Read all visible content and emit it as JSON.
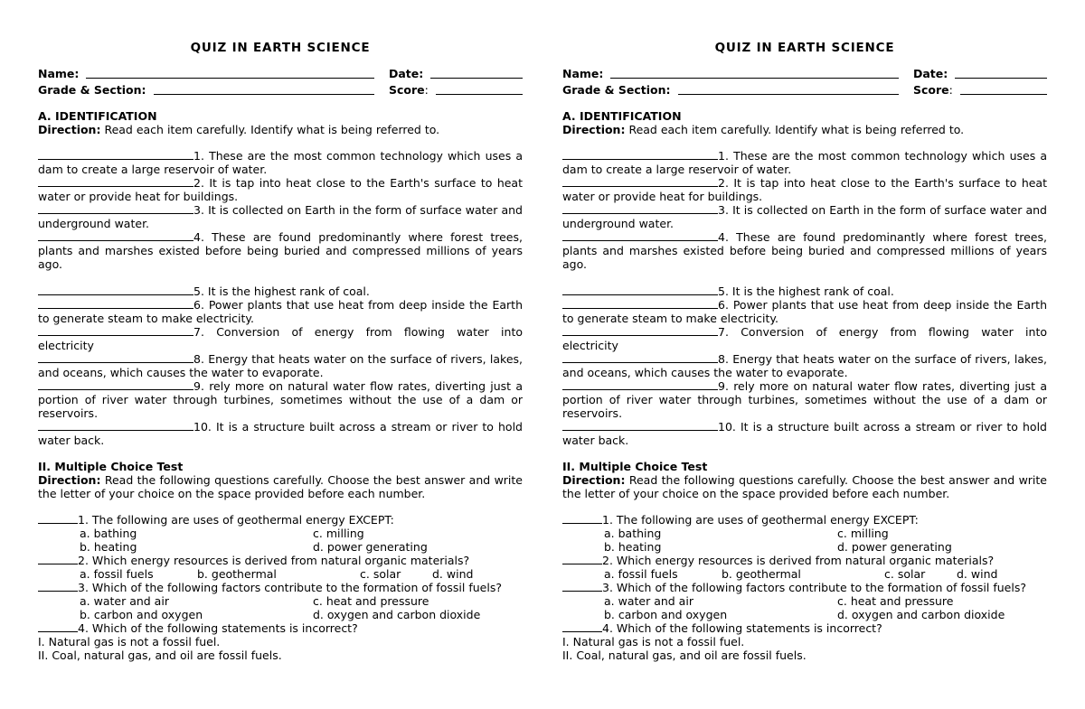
{
  "colors": {
    "text": "#000000",
    "background": "#ffffff"
  },
  "quiz": {
    "title": "QUIZ IN EARTH SCIENCE",
    "header": {
      "name_label": "Name:",
      "date_label": "Date:",
      "grade_label": "Grade & Section:",
      "score_label": "Score",
      "score_colon": ":"
    },
    "identification": {
      "heading": "A. IDENTIFICATION",
      "direction_label": "Direction:",
      "direction_text": "Read each item carefully. Identify what is being referred to.",
      "items": [
        {
          "num": "1.",
          "text": "These are the most common technology which uses a dam to create a large reservoir of water."
        },
        {
          "num": "2.",
          "text": "It is tap into heat close to the Earth's surface to heat water or provide heat for buildings."
        },
        {
          "num": "3.",
          "text": "It is collected on Earth in the form of surface water and underground water."
        },
        {
          "num": "4.",
          "text": "These are found predominantly where forest trees, plants and marshes existed before being buried and compressed millions of years ago."
        },
        {
          "num": "5.",
          "text": "It is the highest rank of coal."
        },
        {
          "num": "6.",
          "text": "Power plants that use heat from deep inside the Earth to generate steam to make electricity."
        },
        {
          "num": "7.",
          "text": "Conversion of energy from flowing water into electricity"
        },
        {
          "num": "8.",
          "text": "Energy that heats water on the surface of rivers, lakes, and oceans, which causes the water to evaporate."
        },
        {
          "num": "9.",
          "text": "rely more on natural water flow rates, diverting just a portion of river water through turbines, sometimes without the use of a dam or reservoirs."
        },
        {
          "num": "10.",
          "text": "It is a structure built across a stream or river to hold water back."
        }
      ]
    },
    "multiple_choice": {
      "heading": "II. Multiple Choice Test",
      "direction_label": "Direction:",
      "direction_text": "Read the following questions carefully. Choose the best answer and write the letter of your choice on the space provided before each number.",
      "questions": [
        {
          "num": "1.",
          "text": "The following are uses of geothermal energy EXCEPT:",
          "option_rows": [
            [
              "a. bathing",
              "c. milling"
            ],
            [
              "b. heating",
              "d. power generating"
            ]
          ]
        },
        {
          "num": "2.",
          "text": "Which energy resources is derived from natural organic materials?",
          "option_row": [
            "a. fossil fuels",
            "b. geothermal",
            "c. solar",
            "d. wind"
          ]
        },
        {
          "num": "3.",
          "text": "Which of the following factors contribute to the formation of fossil fuels?",
          "option_rows": [
            [
              "a. water and air",
              "c. heat and pressure"
            ],
            [
              "b. carbon and oxygen",
              "d. oxygen and carbon dioxide"
            ]
          ]
        },
        {
          "num": "4.",
          "text": "Which of the following statements is incorrect?",
          "statements": [
            "I. Natural gas is not a fossil fuel.",
            "II. Coal, natural gas, and oil are fossil fuels."
          ]
        }
      ]
    }
  }
}
